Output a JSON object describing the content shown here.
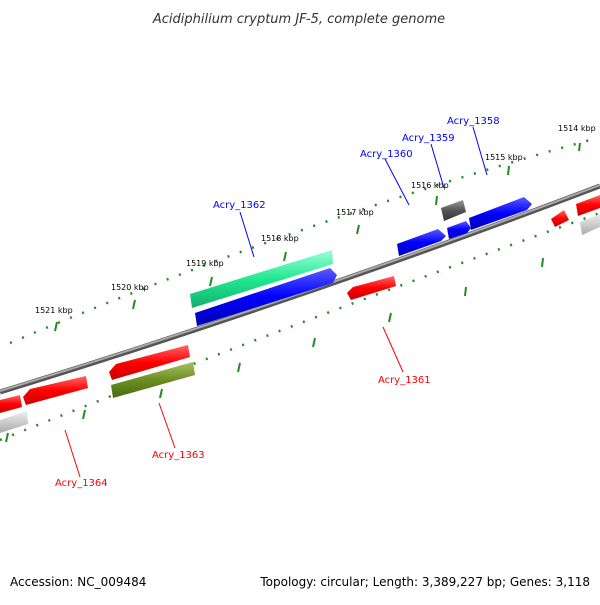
{
  "title": "Acidiphilium cryptum JF-5, complete genome",
  "footer": {
    "accession": "Accession: NC_009484",
    "summary": "Topology: circular; Length: 3,389,227 bp; Genes: 3,118"
  },
  "scale": {
    "labels": [
      "1514 kbp",
      "1515 kbp",
      "1516 kbp",
      "1517 kbp",
      "1518 kbp",
      "1519 kbp",
      "1520 kbp",
      "1521 kbp"
    ]
  },
  "genes": [
    {
      "name": "Acry_1358",
      "color": "#0000ff"
    },
    {
      "name": "Acry_1359",
      "color": "#0000ff"
    },
    {
      "name": "Acry_1360",
      "color": "#0000ff"
    },
    {
      "name": "Acry_1362",
      "color": "#0000ff"
    },
    {
      "name": "Acry_1361",
      "color": "#ff0000"
    },
    {
      "name": "Acry_1363",
      "color": "#ff0000"
    },
    {
      "name": "Acry_1364",
      "color": "#ff0000"
    }
  ],
  "colors": {
    "forward": "#0000ff",
    "reverse": "#ff0000",
    "rna": "#20e890",
    "pseudo": "#6b8e23",
    "other": "#666666",
    "backbone": "#888888",
    "ticks": "#228b22"
  }
}
